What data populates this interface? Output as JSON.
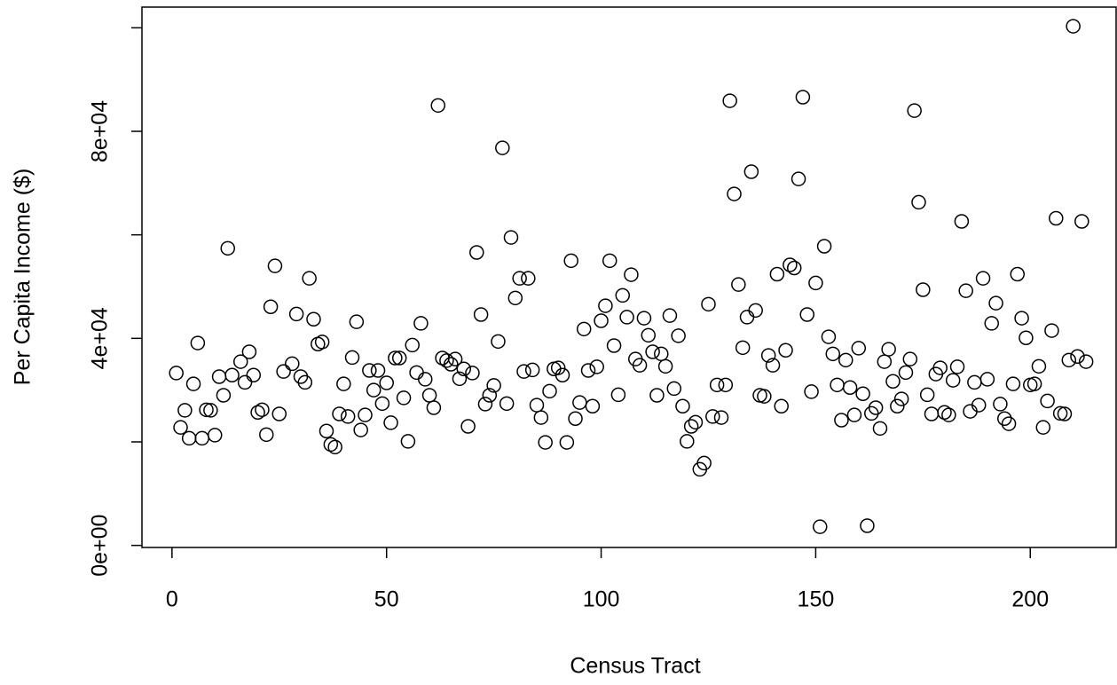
{
  "chart_data": {
    "type": "scatter",
    "x_label": "Census Tract",
    "y_label": "Per Capita Income ($)",
    "color": "#000000",
    "xlim": [
      -7,
      220
    ],
    "ylim": [
      -400,
      104000
    ],
    "xticks": [
      0,
      50,
      100,
      150,
      200
    ],
    "yticks": [
      {
        "value": 0,
        "label": "0e+00"
      },
      {
        "value": 20000,
        "label": null
      },
      {
        "value": 40000,
        "label": "4e+04"
      },
      {
        "value": 60000,
        "label": null
      },
      {
        "value": 80000,
        "label": "8e+04"
      },
      {
        "value": 100000,
        "label": null
      }
    ],
    "x": [
      1,
      2,
      3,
      4,
      5,
      6,
      7,
      8,
      9,
      10,
      11,
      12,
      13,
      14,
      16,
      17,
      18,
      19,
      20,
      21,
      22,
      23,
      24,
      25,
      26,
      28,
      29,
      30,
      31,
      32,
      33,
      34,
      35,
      36,
      37,
      38,
      39,
      40,
      41,
      42,
      43,
      44,
      45,
      46,
      47,
      48,
      49,
      50,
      51,
      52,
      53,
      54,
      55,
      56,
      57,
      58,
      59,
      60,
      61,
      62,
      63,
      64,
      65,
      66,
      67,
      68,
      69,
      70,
      71,
      72,
      73,
      74,
      75,
      76,
      77,
      78,
      79,
      80,
      81,
      82,
      83,
      84,
      85,
      86,
      87,
      88,
      89,
      90,
      91,
      92,
      93,
      94,
      95,
      96,
      97,
      98,
      99,
      100,
      101,
      102,
      103,
      104,
      105,
      106,
      107,
      108,
      109,
      110,
      111,
      112,
      113,
      114,
      115,
      116,
      117,
      118,
      119,
      120,
      121,
      122,
      123,
      124,
      125,
      126,
      127,
      128,
      129,
      130,
      131,
      132,
      133,
      134,
      135,
      136,
      137,
      138,
      139,
      140,
      141,
      142,
      143,
      144,
      145,
      146,
      147,
      148,
      149,
      150,
      151,
      152,
      153,
      154,
      155,
      156,
      157,
      158,
      159,
      160,
      161,
      162,
      163,
      164,
      165,
      166,
      167,
      168,
      169,
      170,
      171,
      172,
      173,
      174,
      175,
      176,
      177,
      178,
      179,
      180,
      181,
      182,
      183,
      184,
      185,
      186,
      187,
      188,
      189,
      190,
      191,
      192,
      193,
      194,
      195,
      196,
      197,
      198,
      199,
      200,
      201,
      202,
      203,
      204,
      205,
      206,
      207,
      208,
      209,
      210,
      211,
      212,
      213
    ],
    "values": [
      33300,
      22800,
      26100,
      20700,
      31200,
      39100,
      20700,
      26200,
      26100,
      21300,
      32600,
      29000,
      57400,
      32900,
      35500,
      31500,
      37400,
      32900,
      25700,
      26200,
      21400,
      46100,
      54000,
      25400,
      33600,
      35100,
      44700,
      32600,
      31500,
      51600,
      43700,
      38900,
      39300,
      22100,
      19500,
      19000,
      25400,
      31200,
      24900,
      36300,
      43200,
      22300,
      25200,
      33800,
      30000,
      33800,
      27400,
      31400,
      23700,
      36200,
      36200,
      28500,
      20100,
      38700,
      33400,
      42900,
      32100,
      29000,
      26600,
      85000,
      36200,
      35700,
      35000,
      36000,
      32200,
      34100,
      23000,
      33300,
      56600,
      44600,
      27300,
      29000,
      30900,
      39400,
      76800,
      27400,
      59500,
      47800,
      51600,
      33600,
      51600,
      33900,
      27100,
      24700,
      19900,
      29800,
      34100,
      34300,
      32900,
      19900,
      55000,
      24500,
      27600,
      41800,
      33800,
      26900,
      34500,
      43400,
      46300,
      55000,
      38600,
      29100,
      48300,
      44100,
      52300,
      36000,
      34800,
      43900,
      40600,
      37400,
      29000,
      37000,
      34600,
      44400,
      30300,
      40500,
      26900,
      20100,
      23000,
      23800,
      14700,
      15900,
      46600,
      24900,
      31000,
      24700,
      31000,
      85900,
      67900,
      50400,
      38200,
      44100,
      72200,
      45400,
      29000,
      28800,
      36700,
      34800,
      52400,
      26900,
      37700,
      54200,
      53600,
      70800,
      86600,
      44600,
      29700,
      50700,
      3600,
      57800,
      40300,
      37000,
      31000,
      24200,
      35800,
      30500,
      25200,
      38100,
      29300,
      3800,
      25500,
      26600,
      22600,
      35500,
      37900,
      31700,
      26900,
      28300,
      33400,
      36000,
      84000,
      66300,
      49400,
      29100,
      25400,
      33100,
      34300,
      25700,
      25200,
      31900,
      34500,
      62600,
      49200,
      25900,
      31500,
      27100,
      51600,
      32100,
      42900,
      46800,
      27300,
      24500,
      23500,
      31200,
      52400,
      43900,
      40100,
      31000,
      31200,
      34600,
      22800,
      27900,
      41500,
      63200,
      25500,
      25400,
      35800,
      100300,
      36500,
      62600,
      35500
    ]
  }
}
